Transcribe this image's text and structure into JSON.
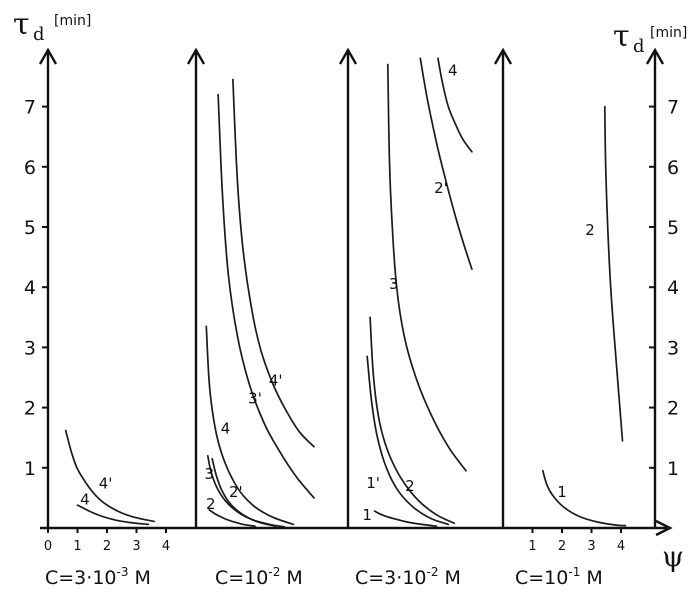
{
  "figure": {
    "y_symbol": "τ",
    "y_subscript": "d",
    "y_unit": "[min]",
    "x_symbol": "ψ"
  },
  "chart_data": [
    {
      "type": "line",
      "panel_label": {
        "base": "C=3·10",
        "exp": "-3",
        "unit": " M"
      },
      "ylim": [
        0,
        7.8
      ],
      "yticks": [
        1,
        2,
        3,
        4,
        5,
        6,
        7
      ],
      "xlim": [
        0,
        4.7
      ],
      "xticks": [
        0,
        1,
        2,
        3,
        4
      ],
      "grid": false,
      "series": [
        {
          "name": "4'",
          "x": [
            0.6,
            0.8,
            1.0,
            1.3,
            1.6,
            2.0,
            2.5,
            3.0,
            3.6
          ],
          "y": [
            1.62,
            1.25,
            0.98,
            0.74,
            0.55,
            0.38,
            0.25,
            0.17,
            0.11
          ],
          "label_at": [
            1.95,
            0.74
          ]
        },
        {
          "name": "4",
          "x": [
            1.0,
            1.4,
            1.8,
            2.3,
            2.8,
            3.4
          ],
          "y": [
            0.38,
            0.28,
            0.2,
            0.13,
            0.09,
            0.06
          ],
          "label_at": [
            1.25,
            0.47
          ]
        }
      ]
    },
    {
      "type": "line",
      "panel_label": {
        "base": "C=10",
        "exp": "-2",
        "unit": " M"
      },
      "ylim": [
        0,
        7.8
      ],
      "yticks": [],
      "xlim": [
        0,
        4.7
      ],
      "xticks": [],
      "grid": false,
      "series": [
        {
          "name": "4'",
          "x": [
            1.25,
            1.4,
            1.6,
            1.9,
            2.2,
            2.6,
            3.0,
            3.5,
            4.0
          ],
          "y": [
            7.45,
            5.8,
            4.6,
            3.6,
            2.95,
            2.4,
            2.0,
            1.6,
            1.35
          ],
          "label_at": [
            2.7,
            2.45
          ]
        },
        {
          "name": "3'",
          "x": [
            0.75,
            0.9,
            1.1,
            1.4,
            1.8,
            2.3,
            2.8,
            3.4,
            4.0
          ],
          "y": [
            7.2,
            5.5,
            4.2,
            3.2,
            2.4,
            1.75,
            1.3,
            0.85,
            0.5
          ],
          "label_at": [
            2.0,
            2.15
          ]
        },
        {
          "name": "4",
          "x": [
            0.35,
            0.45,
            0.6,
            0.8,
            1.1,
            1.5,
            2.0,
            2.6,
            3.3
          ],
          "y": [
            3.35,
            2.4,
            1.8,
            1.35,
            0.95,
            0.6,
            0.35,
            0.18,
            0.06
          ],
          "label_at": [
            1.0,
            1.65
          ]
        },
        {
          "name": "3",
          "x": [
            0.55,
            0.7,
            0.9,
            1.2,
            1.6,
            2.1,
            2.7
          ],
          "y": [
            1.15,
            0.85,
            0.6,
            0.38,
            0.22,
            0.1,
            0.03
          ],
          "label_at": [
            0.45,
            0.9
          ]
        },
        {
          "name": "2'",
          "x": [
            0.4,
            0.5,
            0.7,
            1.0,
            1.4,
            1.9,
            2.5,
            3.0
          ],
          "y": [
            1.2,
            0.95,
            0.68,
            0.45,
            0.27,
            0.14,
            0.06,
            0.02
          ],
          "label_at": [
            1.35,
            0.6
          ]
        },
        {
          "name": "2",
          "x": [
            0.45,
            0.7,
            1.0,
            1.3,
            1.6,
            2.0
          ],
          "y": [
            0.3,
            0.22,
            0.15,
            0.1,
            0.06,
            0.03
          ],
          "label_at": [
            0.5,
            0.4
          ]
        }
      ]
    },
    {
      "type": "line",
      "panel_label": {
        "base": "C=3·10",
        "exp": "-2",
        "unit": " M"
      },
      "ylim": [
        0,
        7.8
      ],
      "yticks": [],
      "xlim": [
        0,
        4.7
      ],
      "xticks": [],
      "grid": false,
      "series": [
        {
          "name": "4",
          "x": [
            3.05,
            3.2,
            3.4,
            3.65,
            3.9,
            4.2
          ],
          "y": [
            7.8,
            7.4,
            7.0,
            6.7,
            6.45,
            6.25
          ],
          "label_at": [
            3.55,
            7.6
          ]
        },
        {
          "name": "2'",
          "x": [
            2.45,
            2.7,
            3.0,
            3.3,
            3.6,
            3.9,
            4.2
          ],
          "y": [
            7.8,
            7.1,
            6.4,
            5.8,
            5.25,
            4.75,
            4.3
          ],
          "label_at": [
            3.15,
            5.65
          ]
        },
        {
          "name": "3",
          "x": [
            1.35,
            1.4,
            1.5,
            1.65,
            1.9,
            2.3,
            2.8,
            3.4,
            4.0
          ],
          "y": [
            7.7,
            6.2,
            5.0,
            4.0,
            3.2,
            2.5,
            1.9,
            1.35,
            0.95
          ],
          "label_at": [
            1.55,
            4.05
          ]
        },
        {
          "name": "2",
          "x": [
            0.75,
            0.85,
            1.0,
            1.2,
            1.5,
            1.9,
            2.4,
            3.0,
            3.6
          ],
          "y": [
            3.5,
            2.6,
            1.95,
            1.5,
            1.1,
            0.75,
            0.45,
            0.22,
            0.08
          ],
          "label_at": [
            2.1,
            0.7
          ]
        },
        {
          "name": "1'",
          "x": [
            0.65,
            0.8,
            1.0,
            1.3,
            1.7,
            2.2,
            2.8,
            3.4
          ],
          "y": [
            2.85,
            2.1,
            1.5,
            1.0,
            0.62,
            0.35,
            0.16,
            0.06
          ],
          "label_at": [
            0.85,
            0.75
          ]
        },
        {
          "name": "1",
          "x": [
            0.9,
            1.2,
            1.6,
            2.0,
            2.5,
            3.0
          ],
          "y": [
            0.28,
            0.21,
            0.15,
            0.1,
            0.06,
            0.03
          ],
          "label_at": [
            0.65,
            0.22
          ]
        }
      ]
    },
    {
      "type": "line",
      "panel_label": {
        "base": "C=10",
        "exp": "-1",
        "unit": " M"
      },
      "ylim": [
        0,
        7.8
      ],
      "yticks": [
        1,
        2,
        3,
        4,
        5,
        6,
        7
      ],
      "xlim": [
        0,
        4.7
      ],
      "xticks": [
        1,
        2,
        3,
        4
      ],
      "grid": false,
      "series": [
        {
          "name": "2",
          "x": [
            3.45,
            3.48,
            3.55,
            3.65,
            3.8,
            4.05
          ],
          "y": [
            7.0,
            6.0,
            5.0,
            4.0,
            3.0,
            1.45
          ],
          "label_at": [
            2.95,
            4.95
          ]
        },
        {
          "name": "1",
          "x": [
            1.35,
            1.5,
            1.75,
            2.1,
            2.6,
            3.2,
            3.8,
            4.15
          ],
          "y": [
            0.95,
            0.7,
            0.5,
            0.33,
            0.19,
            0.1,
            0.05,
            0.04
          ],
          "label_at": [
            2.0,
            0.6
          ]
        }
      ]
    }
  ]
}
